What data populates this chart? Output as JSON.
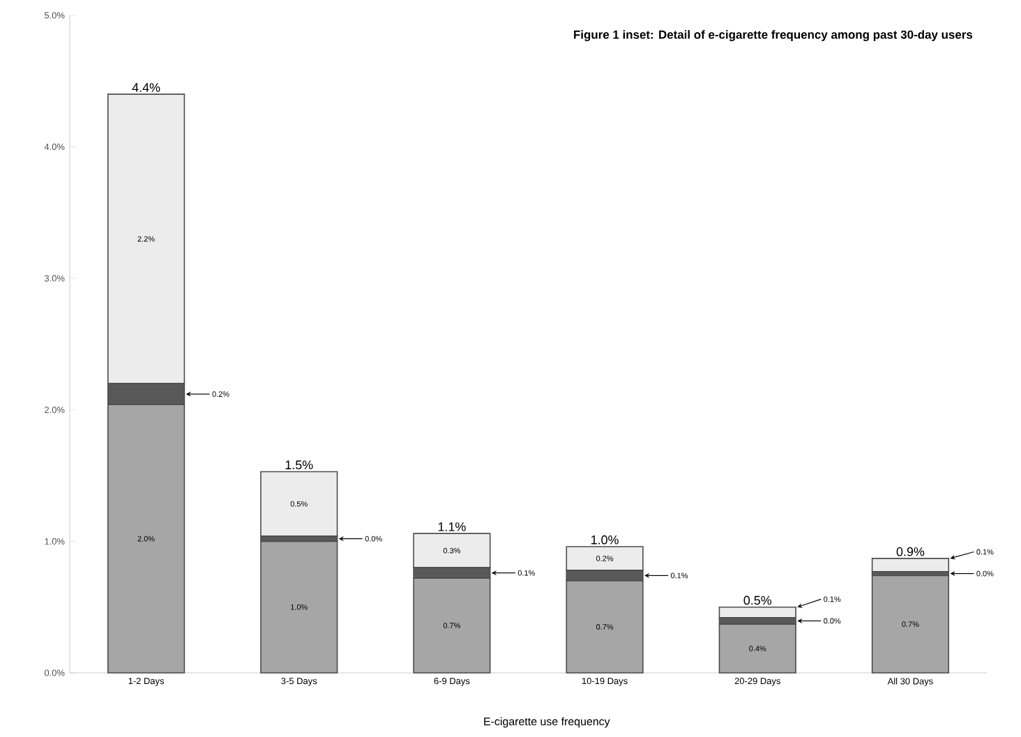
{
  "chart_data": {
    "type": "bar",
    "stacked": true,
    "title": "Figure 1 inset: Detail of e-cigarette frequency among past 30-day users",
    "xlabel": "E-cigarette use frequency",
    "categories": [
      "1-2 Days",
      "3-5 Days",
      "6-9 Days",
      "10-19 Days",
      "20-29 Days",
      "All 30 Days"
    ],
    "series": [
      {
        "color": "#a6a6a6",
        "values": [
          2.04,
          1.0,
          0.72,
          0.7,
          0.37,
          0.74
        ],
        "value_labels": [
          "2.0%",
          "1.0%",
          "0.7%",
          "0.7%",
          "0.4%",
          "0.7%"
        ]
      },
      {
        "color": "#595959",
        "values": [
          0.16,
          0.04,
          0.08,
          0.08,
          0.05,
          0.03
        ],
        "value_labels": [
          "0.2%",
          "0.0%",
          "0.1%",
          "0.1%",
          "0.0%",
          "0.0%"
        ]
      },
      {
        "color": "#ececec",
        "values": [
          2.2,
          0.49,
          0.26,
          0.18,
          0.08,
          0.1
        ],
        "value_labels": [
          "2.2%",
          "0.5%",
          "0.3%",
          "0.2%",
          "0.1%",
          "0.1%"
        ]
      }
    ],
    "totals": [
      "4.4%",
      "1.5%",
      "1.1%",
      "1.0%",
      "0.5%",
      "0.9%"
    ],
    "ylim": [
      0,
      5
    ],
    "yticks": [
      {
        "value": 0,
        "label": "0.0%"
      },
      {
        "value": 1,
        "label": "1.0%"
      },
      {
        "value": 2,
        "label": "2.0%"
      },
      {
        "value": 3,
        "label": "3.0%"
      },
      {
        "value": 4,
        "label": "4.0%"
      },
      {
        "value": 5,
        "label": "5.0%"
      }
    ]
  }
}
